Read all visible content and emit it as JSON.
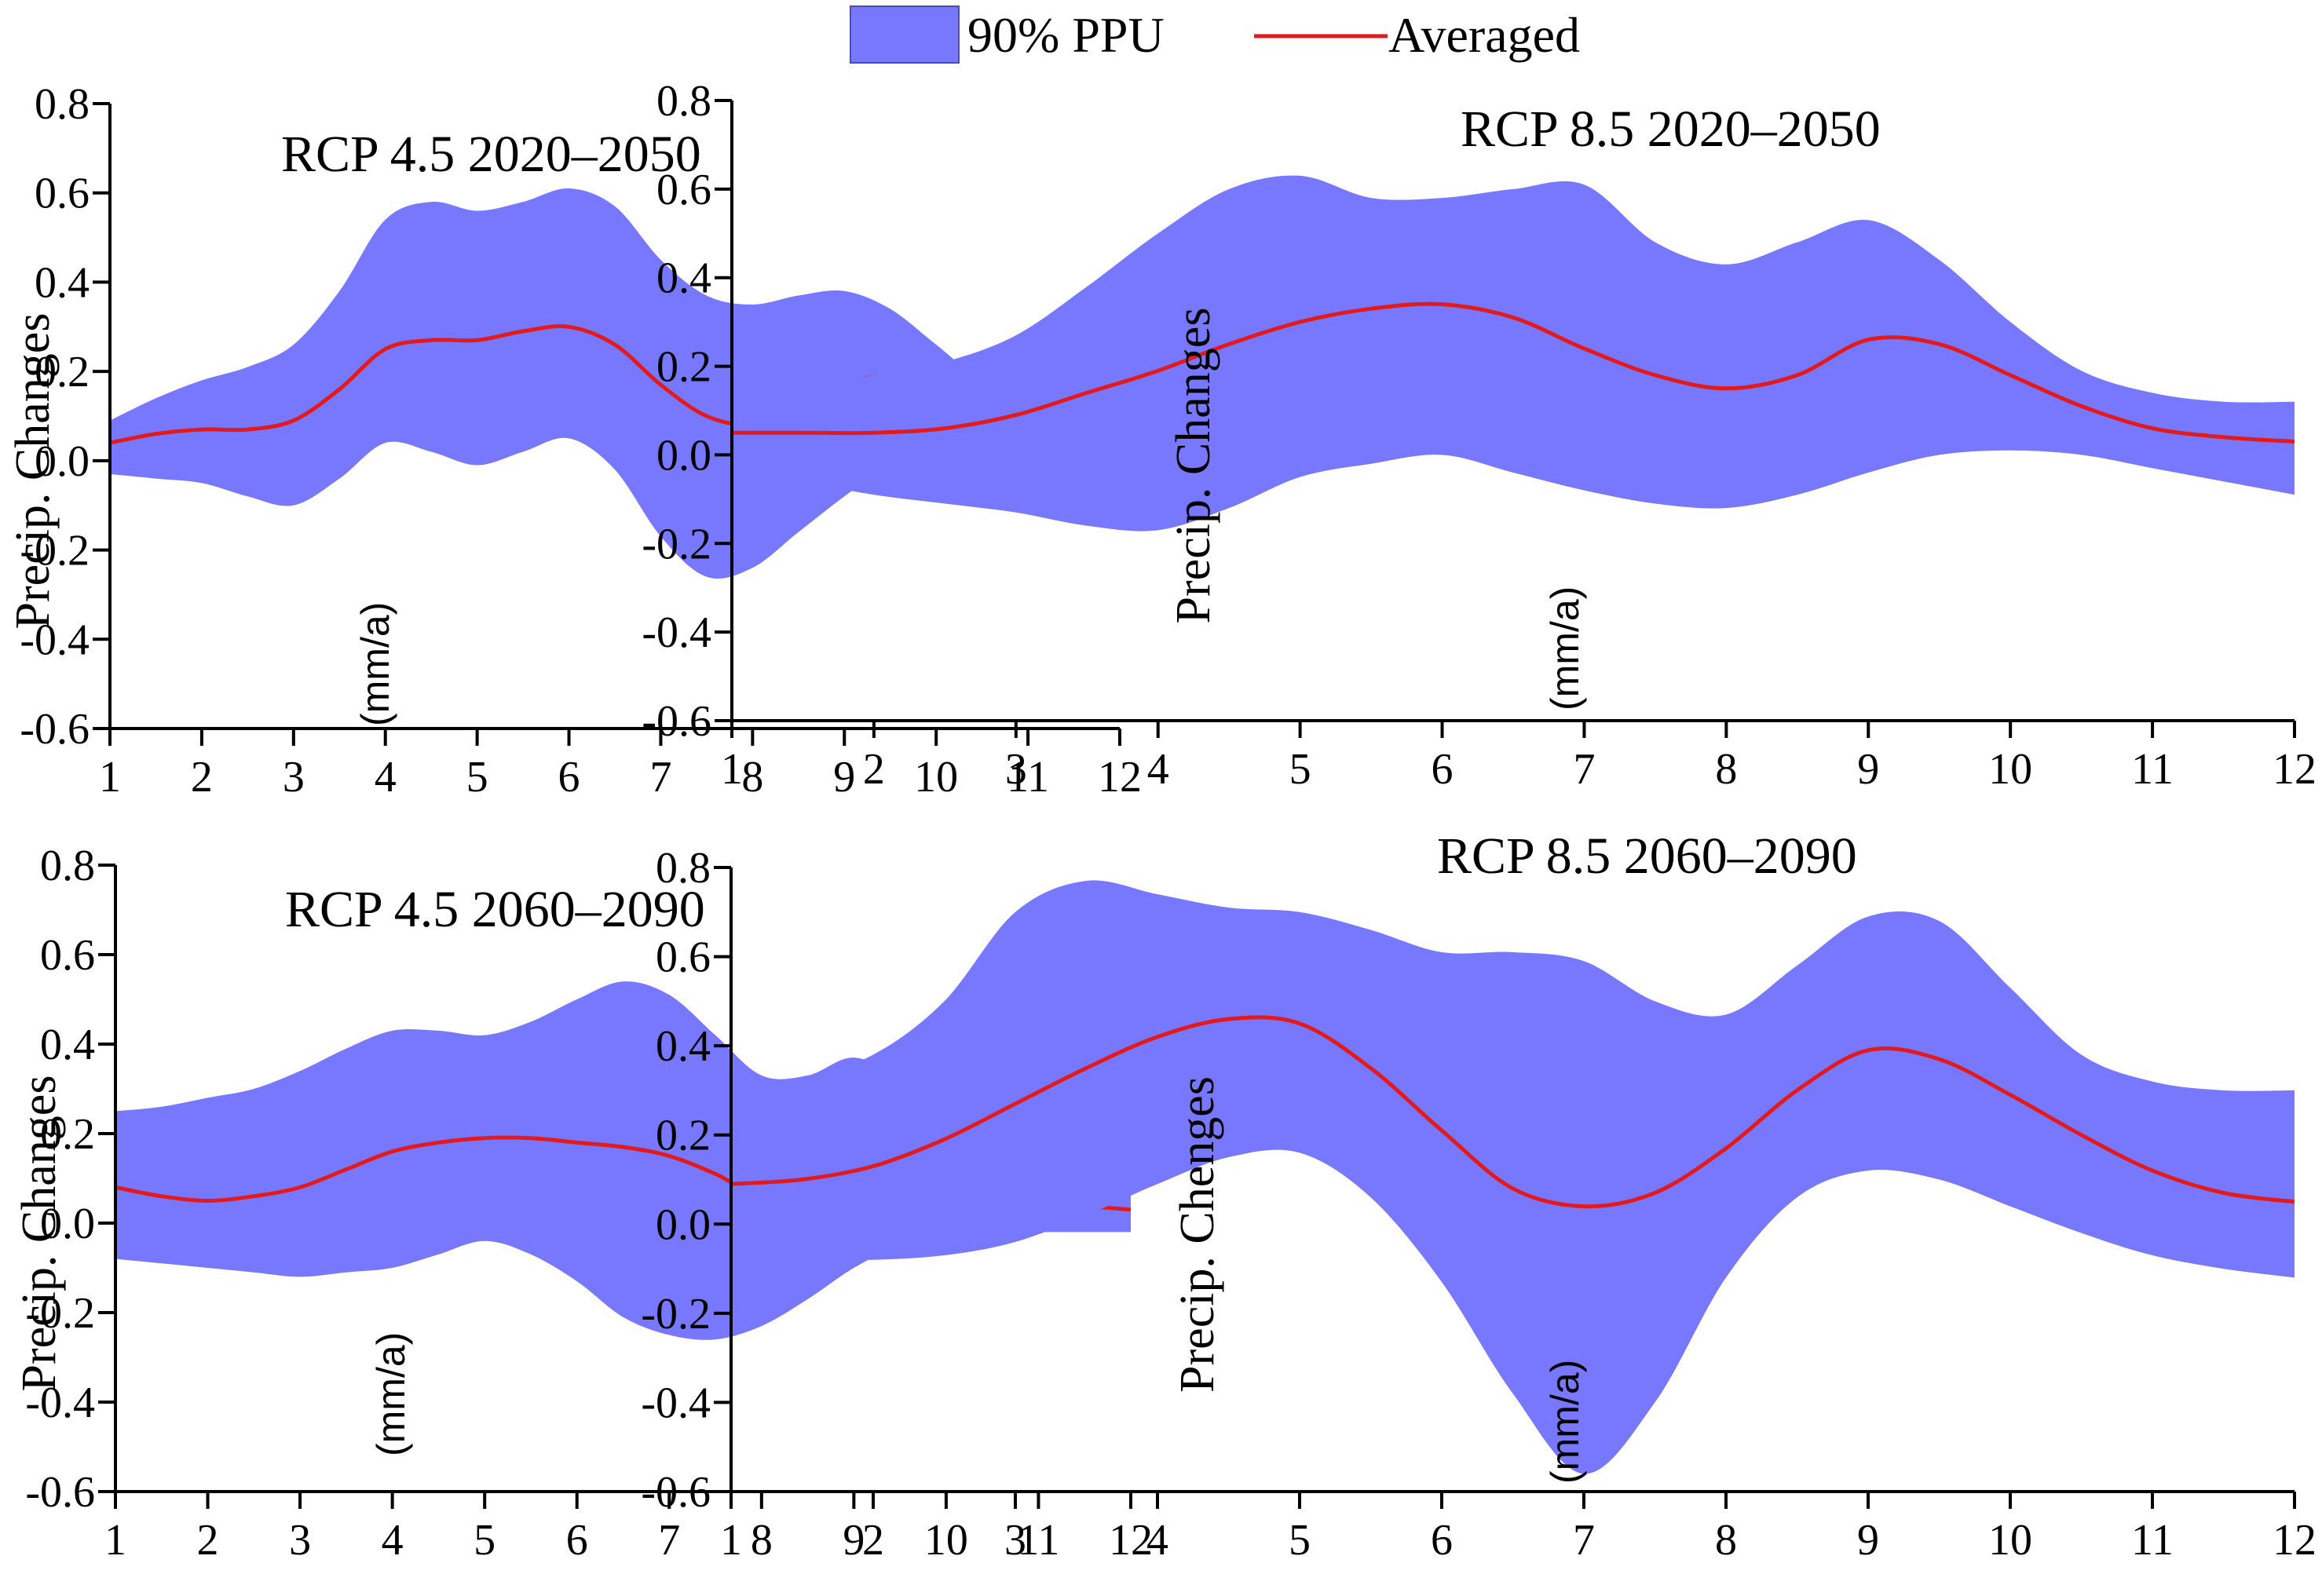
{
  "legend": {
    "band_label": "90% PPU",
    "line_label": "Averaged"
  },
  "colors": {
    "band": "#7878ff",
    "band_edge": "#4a4ab0",
    "line": "#e31a1c",
    "axis": "#000000"
  },
  "chart_data": [
    {
      "type": "area",
      "title": "RCP 4.5 2020–2050",
      "ylabel": "Precip. Changes",
      "yunit": "(mm/a)",
      "xlim": [
        1,
        12
      ],
      "ylim": [
        -0.6,
        0.8
      ],
      "xticks": [
        "1",
        "2",
        "3",
        "4",
        "5",
        "6",
        "7",
        "8",
        "9",
        "10",
        "11",
        "12"
      ],
      "yticks": [
        "0.8",
        "0.6",
        "0.4",
        "0.2",
        "0.0",
        "-0.2",
        "-0.4",
        "-0.6"
      ],
      "x": [
        1,
        1.5,
        2,
        2.5,
        3,
        3.5,
        4,
        4.5,
        5,
        5.5,
        6,
        6.5,
        7,
        7.5,
        8,
        8.5,
        9,
        9.5,
        10,
        10.5,
        11,
        11.5,
        12
      ],
      "series": [
        {
          "name": "90% PPU upper",
          "values": [
            0.09,
            0.14,
            0.18,
            0.21,
            0.26,
            0.38,
            0.54,
            0.58,
            0.56,
            0.58,
            0.61,
            0.57,
            0.45,
            0.37,
            0.35,
            0.37,
            0.38,
            0.34,
            0.26,
            0.18,
            0.15,
            0.14,
            0.13
          ]
        },
        {
          "name": "90% PPU lower",
          "values": [
            -0.03,
            -0.04,
            -0.05,
            -0.08,
            -0.1,
            -0.04,
            0.04,
            0.02,
            -0.01,
            0.02,
            0.05,
            -0.02,
            -0.17,
            -0.26,
            -0.24,
            -0.16,
            -0.08,
            -0.01,
            0.02,
            0.01,
            -0.03,
            -0.06,
            -0.08
          ]
        },
        {
          "name": "Averaged",
          "values": [
            0.04,
            0.06,
            0.07,
            0.07,
            0.09,
            0.16,
            0.25,
            0.27,
            0.27,
            0.29,
            0.3,
            0.26,
            0.17,
            0.1,
            0.08,
            0.11,
            0.17,
            0.19,
            0.17,
            0.14,
            0.09,
            0.05,
            0.02
          ]
        }
      ]
    },
    {
      "type": "area",
      "title": "RCP 8.5 2020–2050",
      "ylabel": "Precip. Changes",
      "yunit": "(mm/a)",
      "xlim": [
        1,
        12
      ],
      "ylim": [
        -0.6,
        0.8
      ],
      "xticks": [
        "1",
        "2",
        "3",
        "4",
        "5",
        "6",
        "7",
        "8",
        "9",
        "10",
        "11",
        "12"
      ],
      "yticks": [
        "0.8",
        "0.6",
        "0.4",
        "0.2",
        "0.0",
        "-0.2",
        "-0.4",
        "-0.6"
      ],
      "x": [
        1,
        1.5,
        2,
        2.5,
        3,
        3.5,
        4,
        4.5,
        5,
        5.5,
        6,
        6.5,
        7,
        7.5,
        8,
        8.5,
        9,
        9.5,
        10,
        10.5,
        11,
        11.5,
        12
      ],
      "series": [
        {
          "name": "90% PPU upper",
          "values": [
            0.12,
            0.15,
            0.18,
            0.21,
            0.27,
            0.38,
            0.5,
            0.6,
            0.63,
            0.58,
            0.58,
            0.6,
            0.61,
            0.48,
            0.43,
            0.48,
            0.53,
            0.44,
            0.3,
            0.19,
            0.14,
            0.12,
            0.12
          ]
        },
        {
          "name": "90% PPU lower",
          "values": [
            -0.02,
            -0.06,
            -0.09,
            -0.11,
            -0.13,
            -0.16,
            -0.17,
            -0.12,
            -0.05,
            -0.02,
            0.0,
            -0.04,
            -0.08,
            -0.11,
            -0.12,
            -0.09,
            -0.04,
            0.0,
            0.01,
            0.0,
            -0.03,
            -0.06,
            -0.09
          ]
        },
        {
          "name": "Averaged",
          "values": [
            0.05,
            0.05,
            0.05,
            0.06,
            0.09,
            0.14,
            0.19,
            0.25,
            0.3,
            0.33,
            0.34,
            0.31,
            0.24,
            0.18,
            0.15,
            0.18,
            0.26,
            0.25,
            0.18,
            0.11,
            0.06,
            0.04,
            0.03
          ]
        }
      ]
    },
    {
      "type": "area",
      "title": "RCP 4.5 2060–2090",
      "ylabel": "Precip. Changes",
      "yunit": "(mm/a)",
      "xlim": [
        1,
        12
      ],
      "ylim": [
        -0.6,
        0.8
      ],
      "xticks": [
        "1",
        "2",
        "3",
        "4",
        "5",
        "6",
        "7",
        "8",
        "9",
        "10",
        "11",
        "12"
      ],
      "yticks": [
        "0.8",
        "0.6",
        "0.4",
        "0.2",
        "0.0",
        "-0.2",
        "-0.4",
        "-0.6"
      ],
      "x": [
        1,
        1.5,
        2,
        2.5,
        3,
        3.5,
        4,
        4.5,
        5,
        5.5,
        6,
        6.5,
        7,
        7.5,
        8,
        8.5,
        9,
        9.5,
        10,
        10.5,
        11,
        11.5,
        12
      ],
      "series": [
        {
          "name": "90% PPU upper",
          "values": [
            0.25,
            0.26,
            0.28,
            0.3,
            0.34,
            0.39,
            0.43,
            0.43,
            0.42,
            0.45,
            0.5,
            0.54,
            0.51,
            0.42,
            0.33,
            0.33,
            0.37,
            0.32,
            0.24,
            0.18,
            0.16,
            0.15,
            0.15
          ]
        },
        {
          "name": "90% PPU lower",
          "values": [
            -0.08,
            -0.09,
            -0.1,
            -0.11,
            -0.12,
            -0.11,
            -0.1,
            -0.07,
            -0.04,
            -0.07,
            -0.13,
            -0.21,
            -0.25,
            -0.26,
            -0.23,
            -0.17,
            -0.1,
            -0.05,
            -0.03,
            -0.02,
            -0.02,
            -0.02,
            -0.02
          ]
        },
        {
          "name": "Averaged",
          "values": [
            0.08,
            0.06,
            0.05,
            0.06,
            0.08,
            0.12,
            0.16,
            0.18,
            0.19,
            0.19,
            0.18,
            0.17,
            0.15,
            0.11,
            0.06,
            0.08,
            0.14,
            0.15,
            0.12,
            0.09,
            0.06,
            0.04,
            0.03
          ]
        }
      ]
    },
    {
      "type": "area",
      "title": "RCP 8.5 2060–2090",
      "ylabel": "Precip. Chenges",
      "yunit": "(mm/a)",
      "xlim": [
        1,
        12
      ],
      "ylim": [
        -0.6,
        0.8
      ],
      "xticks": [
        "1",
        "2",
        "3",
        "4",
        "5",
        "6",
        "7",
        "8",
        "9",
        "10",
        "11",
        "12"
      ],
      "yticks": [
        "0.8",
        "0.6",
        "0.4",
        "0.2",
        "0.0",
        "-0.2",
        "-0.4",
        "-0.6"
      ],
      "x": [
        1,
        1.5,
        2,
        2.5,
        3,
        3.5,
        4,
        4.5,
        5,
        5.5,
        6,
        6.5,
        7,
        7.5,
        8,
        8.5,
        9,
        9.5,
        10,
        10.5,
        11,
        11.5,
        12
      ],
      "series": [
        {
          "name": "90% PPU upper",
          "values": [
            0.32,
            0.33,
            0.38,
            0.5,
            0.7,
            0.77,
            0.74,
            0.71,
            0.7,
            0.66,
            0.61,
            0.61,
            0.59,
            0.5,
            0.47,
            0.58,
            0.69,
            0.68,
            0.53,
            0.38,
            0.32,
            0.3,
            0.3
          ]
        },
        {
          "name": "90% PPU lower",
          "values": [
            -0.08,
            -0.08,
            -0.08,
            -0.07,
            -0.04,
            0.02,
            0.09,
            0.15,
            0.16,
            0.06,
            -0.13,
            -0.38,
            -0.56,
            -0.4,
            -0.12,
            0.06,
            0.12,
            0.1,
            0.04,
            -0.02,
            -0.07,
            -0.1,
            -0.12
          ]
        },
        {
          "name": "Averaged",
          "values": [
            0.09,
            0.1,
            0.13,
            0.19,
            0.27,
            0.35,
            0.42,
            0.46,
            0.45,
            0.35,
            0.21,
            0.08,
            0.04,
            0.07,
            0.17,
            0.3,
            0.39,
            0.37,
            0.29,
            0.2,
            0.12,
            0.07,
            0.05
          ]
        }
      ]
    }
  ]
}
